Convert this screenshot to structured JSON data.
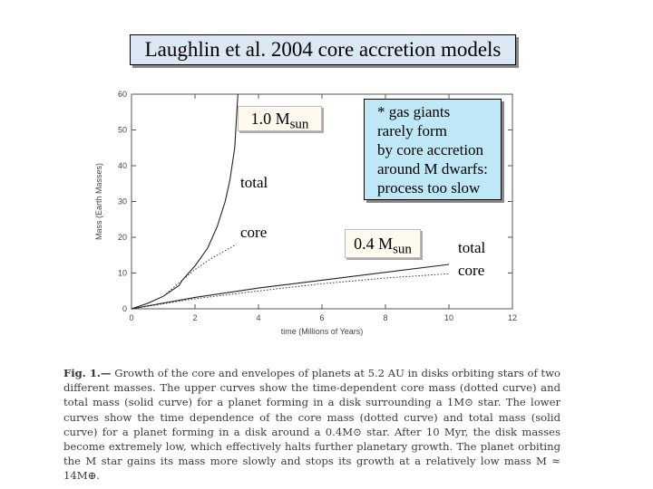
{
  "title": "Laughlin et al. 2004 core accretion models",
  "chart_data": {
    "type": "line",
    "xlabel": "time (Millions of Years)",
    "ylabel": "Mass (Earth Masses)",
    "xlim": [
      0,
      12
    ],
    "ylim": [
      0,
      60
    ],
    "x_ticks": [
      "0",
      "2",
      "4",
      "6",
      "8",
      "10",
      "12"
    ],
    "y_ticks": [
      "0",
      "10",
      "20",
      "30",
      "40",
      "50",
      "60"
    ],
    "series": [
      {
        "name": "1.0 Msun total",
        "style": "solid",
        "x": [
          0,
          0.5,
          1.0,
          1.5,
          1.6,
          2.0,
          2.4,
          2.7,
          2.95,
          3.1,
          3.25,
          3.35
        ],
        "y": [
          0,
          1.5,
          3.5,
          6.5,
          8,
          12,
          17,
          23,
          30,
          36,
          45,
          60
        ]
      },
      {
        "name": "1.0 Msun core",
        "style": "dotted",
        "x": [
          0,
          0.5,
          1.0,
          1.6,
          2.0,
          2.5,
          3.0,
          3.3
        ],
        "y": [
          0,
          1.5,
          3.5,
          8,
          11,
          14,
          16.5,
          18
        ]
      },
      {
        "name": "0.4 Msun total",
        "style": "solid",
        "x": [
          0,
          2,
          4,
          6,
          8,
          10
        ],
        "y": [
          0,
          3.2,
          5.8,
          8.0,
          10.2,
          12.4
        ]
      },
      {
        "name": "0.4 Msun core",
        "style": "dotted",
        "x": [
          0,
          2,
          4,
          6,
          8,
          10
        ],
        "y": [
          0,
          2.8,
          5.0,
          7.0,
          8.6,
          9.8
        ]
      }
    ],
    "grid": false,
    "legend": "none"
  },
  "labels": {
    "mass_1": "1.0 M",
    "mass_1_sub": "sun",
    "total_1": "total",
    "core_1": "core",
    "mass_2": "0.4 M",
    "mass_2_sub": "sun",
    "total_2": "total",
    "core_2": "core"
  },
  "note": [
    "* gas giants",
    "rarely form",
    "by core accretion",
    "around M dwarfs:",
    "process too slow"
  ],
  "caption": {
    "head": "Fig. 1.—",
    "text": " Growth of the core and envelopes of planets at 5.2 AU in disks orbiting stars of two different masses. The upper curves show the time-dependent core mass (dotted curve) and total mass (solid curve) for a planet forming in a disk surrounding a 1M⊙ star. The lower curves show the time dependence of the core mass (dotted curve) and total mass (solid curve) for a planet forming in a disk around a 0.4M⊙ star. After 10 Myr, the disk masses become extremely low, which effectively halts further planetary growth. The planet orbiting the M star gains its mass more slowly and stops its growth at a relatively low mass M ≈ 14M⊕."
  },
  "colors": {
    "title_bg": "#dbe7f3",
    "note_bg": "#bfe8f6",
    "label_bg": "#fffaf0",
    "axis": "#555555"
  }
}
